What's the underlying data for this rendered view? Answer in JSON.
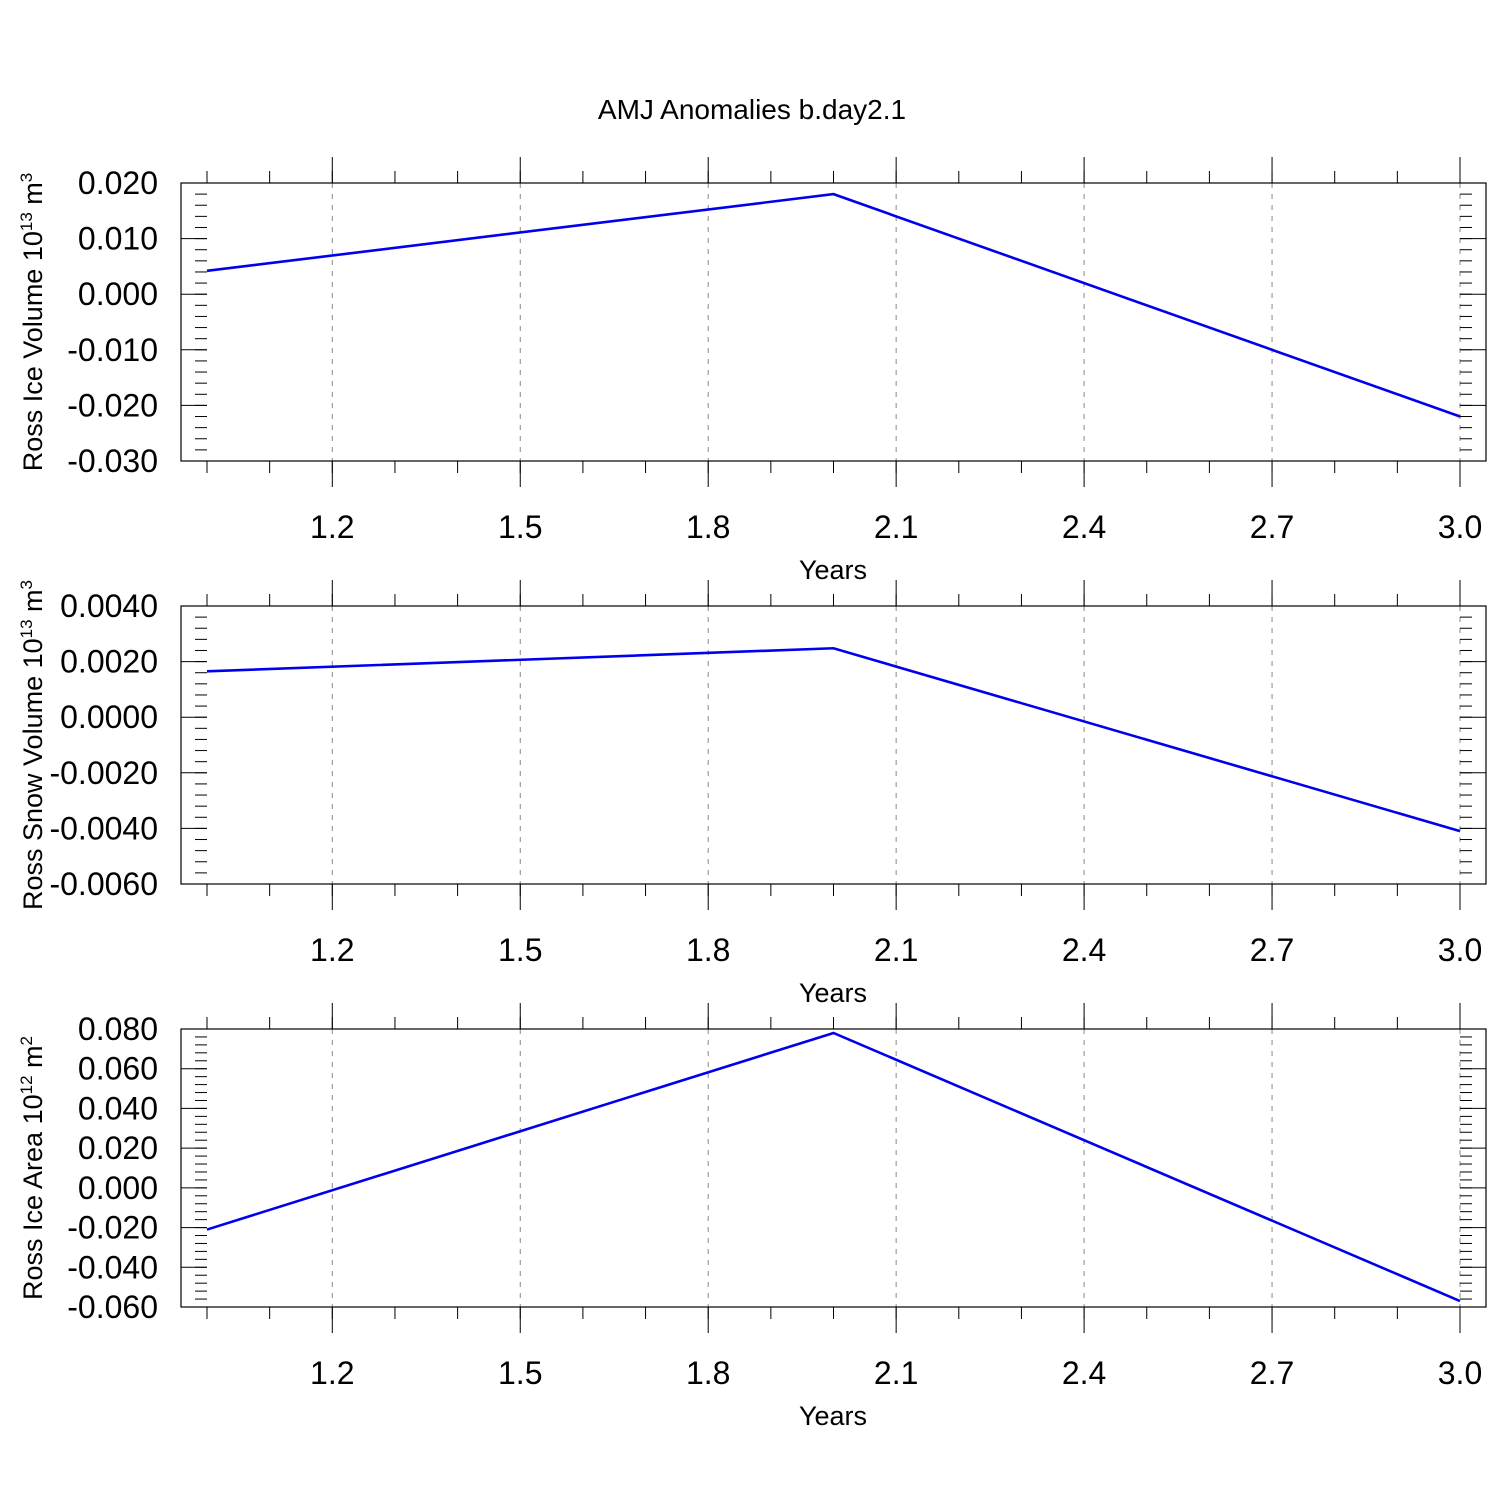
{
  "title": "AMJ Anomalies b.day2.1",
  "colors": {
    "series": "#0000ee",
    "grid": "#888888"
  },
  "chart_data": [
    {
      "type": "line",
      "title": "",
      "xlabel": "Years",
      "ylabel_main": "Ross Ice Volume 10",
      "ylabel_exp1": "13",
      "ylabel_mid": " m",
      "ylabel_exp2": "3",
      "xlim": [
        1.0,
        3.0
      ],
      "ylim": [
        -0.03,
        0.02
      ],
      "xticks": [
        "1.2",
        "1.5",
        "1.8",
        "2.1",
        "2.4",
        "2.7",
        "3.0"
      ],
      "yticks": [
        "0.020",
        "0.010",
        "0.000",
        "-0.010",
        "-0.020",
        "-0.030"
      ],
      "grid": "vertical dashed",
      "x": [
        1.0,
        2.0,
        3.0
      ],
      "series": [
        {
          "values": [
            0.0042,
            0.018,
            -0.022
          ]
        }
      ]
    },
    {
      "type": "line",
      "title": "",
      "xlabel": "Years",
      "ylabel_main": "Ross Snow Volume 10",
      "ylabel_exp1": "13",
      "ylabel_mid": " m",
      "ylabel_exp2": "3",
      "xlim": [
        1.0,
        3.0
      ],
      "ylim": [
        -0.006,
        0.004
      ],
      "xticks": [
        "1.2",
        "1.5",
        "1.8",
        "2.1",
        "2.4",
        "2.7",
        "3.0"
      ],
      "yticks": [
        "0.0040",
        "0.0020",
        "0.0000",
        "-0.0020",
        "-0.0040",
        "-0.0060"
      ],
      "grid": "vertical dashed",
      "x": [
        1.0,
        2.0,
        3.0
      ],
      "series": [
        {
          "values": [
            0.00165,
            0.00248,
            -0.0041
          ]
        }
      ]
    },
    {
      "type": "line",
      "title": "",
      "xlabel": "Years",
      "ylabel_main": "Ross Ice Area 10",
      "ylabel_exp1": "12",
      "ylabel_mid": " m",
      "ylabel_exp2": "2",
      "xlim": [
        1.0,
        3.0
      ],
      "ylim": [
        -0.06,
        0.08
      ],
      "xticks": [
        "1.2",
        "1.5",
        "1.8",
        "2.1",
        "2.4",
        "2.7",
        "3.0"
      ],
      "yticks": [
        "0.080",
        "0.060",
        "0.040",
        "0.020",
        "0.000",
        "-0.020",
        "-0.040",
        "-0.060"
      ],
      "grid": "vertical dashed",
      "x": [
        1.0,
        2.0,
        3.0
      ],
      "series": [
        {
          "values": [
            -0.021,
            0.078,
            -0.057
          ]
        }
      ]
    }
  ]
}
